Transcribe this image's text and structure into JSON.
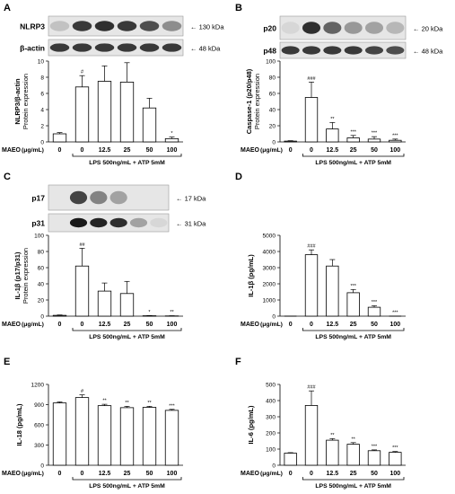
{
  "panels": [
    {
      "letter": "A",
      "blots": [
        {
          "label": "NLRP3",
          "size": "130 kDa",
          "bands": [
            0.15,
            0.8,
            0.85,
            0.8,
            0.7,
            0.4
          ]
        },
        {
          "label": "β-actin",
          "size": "48 kDa",
          "bands": [
            0.8,
            0.8,
            0.8,
            0.8,
            0.8,
            0.8
          ]
        }
      ],
      "chart": {
        "type": "bar",
        "ylabel": [
          "NLRP3/β-actin",
          "Protein expression"
        ],
        "yticks": [
          "0",
          "2",
          "4",
          "6",
          "8",
          "10"
        ],
        "ylim": [
          0,
          10
        ],
        "categories": [
          "0",
          "0",
          "12.5",
          "25",
          "50",
          "100"
        ],
        "values": [
          1.0,
          6.8,
          7.5,
          7.4,
          4.2,
          0.4
        ],
        "errors": [
          0.15,
          1.4,
          1.9,
          2.4,
          1.2,
          0.2
        ],
        "marks": [
          "",
          "#",
          "",
          "",
          "",
          "*"
        ],
        "xaxis_label": "MAEO",
        "xaxis_unit": "(μg/mL)",
        "treatment": "LPS 500ng/mL + ATP 5mM"
      }
    },
    {
      "letter": "B",
      "blots": [
        {
          "label": "p20",
          "size": "20 kDa",
          "bands": [
            0.05,
            0.85,
            0.6,
            0.35,
            0.3,
            0.2
          ]
        },
        {
          "label": "p48",
          "size": "48 kDa",
          "bands": [
            0.8,
            0.8,
            0.8,
            0.8,
            0.75,
            0.7
          ]
        }
      ],
      "chart": {
        "type": "bar",
        "ylabel": [
          "Caspase-1 (p20/p48)",
          "Protein expression"
        ],
        "yticks": [
          "0",
          "20",
          "40",
          "60",
          "80",
          "100"
        ],
        "ylim": [
          0,
          100
        ],
        "categories": [
          "0",
          "0",
          "12.5",
          "25",
          "50",
          "100"
        ],
        "values": [
          1.0,
          55.0,
          16.0,
          5.0,
          3.5,
          2.0
        ],
        "errors": [
          0.5,
          19.0,
          8.0,
          3.0,
          3.0,
          1.5
        ],
        "marks": [
          "",
          "###",
          "**",
          "***",
          "***",
          "***"
        ],
        "xaxis_label": "MAEO",
        "xaxis_unit": "(μg/mL)",
        "treatment": "LPS 500ng/mL + ATP 5mM"
      }
    },
    {
      "letter": "C",
      "blots": [
        {
          "label": "p17",
          "size": "17 kDa",
          "bands": [
            0.0,
            0.75,
            0.45,
            0.3,
            0.0,
            0.0
          ]
        },
        {
          "label": "p31",
          "size": "31 kDa",
          "bands": [
            0.0,
            0.95,
            0.9,
            0.85,
            0.3,
            0.05
          ]
        }
      ],
      "chart": {
        "type": "bar",
        "ylabel": [
          "IL-1β (p17/p31)",
          "Protein expression"
        ],
        "yticks": [
          "0",
          "20",
          "40",
          "60",
          "80",
          "100"
        ],
        "ylim": [
          0,
          100
        ],
        "categories": [
          "0",
          "0",
          "12.5",
          "25",
          "50",
          "100"
        ],
        "values": [
          1.0,
          62.0,
          31.0,
          28.0,
          0.5,
          0.3
        ],
        "errors": [
          0.5,
          22.0,
          10.0,
          15.0,
          0.3,
          0.2
        ],
        "marks": [
          "",
          "##",
          "",
          "",
          "*",
          "**"
        ],
        "xaxis_label": "MAEO",
        "xaxis_unit": "(μg/mL)",
        "treatment": "LPS 500ng/mL + ATP 5mM"
      }
    },
    {
      "letter": "D",
      "blots": [],
      "chart": {
        "type": "bar",
        "ylabel": [
          "IL-1β (pg/mL)"
        ],
        "yticks": [
          "0",
          "1000",
          "2000",
          "3000",
          "4000",
          "5000"
        ],
        "ylim": [
          0,
          5000
        ],
        "categories": [
          "0",
          "0",
          "12.5",
          "25",
          "50",
          "100"
        ],
        "values": [
          0,
          3800,
          3100,
          1450,
          550,
          0
        ],
        "errors": [
          0,
          300,
          400,
          200,
          100,
          0
        ],
        "marks": [
          "",
          "###",
          "",
          "***",
          "***",
          "***"
        ],
        "xaxis_label": "MAEO",
        "xaxis_unit": "(μg/mL)",
        "treatment": "LPS 500ng/mL + ATP 5mM"
      }
    },
    {
      "letter": "E",
      "blots": [],
      "chart": {
        "type": "bar",
        "ylabel": [
          "IL-18 (pg/mL)"
        ],
        "yticks": [
          "0",
          "300",
          "600",
          "900",
          "1200"
        ],
        "ylim": [
          0,
          1200
        ],
        "categories": [
          "0",
          "0",
          "12.5",
          "25",
          "50",
          "100"
        ],
        "values": [
          925,
          1005,
          885,
          855,
          860,
          815
        ],
        "errors": [
          15,
          40,
          20,
          20,
          15,
          15
        ],
        "marks": [
          "",
          "#",
          "**",
          "**",
          "**",
          "***"
        ],
        "xaxis_label": "MAEO",
        "xaxis_unit": "(μg/mL)",
        "treatment": "LPS 500ng/mL + ATP 5mM"
      }
    },
    {
      "letter": "F",
      "blots": [],
      "chart": {
        "type": "bar",
        "ylabel": [
          "IL-6 (pg/mL)"
        ],
        "yticks": [
          "0",
          "100",
          "200",
          "300",
          "400",
          "500"
        ],
        "ylim": [
          0,
          500
        ],
        "categories": [
          "0",
          "0",
          "12.5",
          "25",
          "50",
          "100"
        ],
        "values": [
          75,
          370,
          155,
          130,
          90,
          80
        ],
        "errors": [
          3,
          90,
          10,
          10,
          5,
          5
        ],
        "marks": [
          "",
          "###",
          "**",
          "**",
          "***",
          "***"
        ],
        "xaxis_label": "MAEO",
        "xaxis_unit": "(μg/mL)",
        "treatment": "LPS 500ng/mL + ATP 5mM"
      }
    }
  ],
  "chart_data": [
    {
      "type": "bar",
      "panel": "A",
      "categories": [
        "0",
        "0",
        "12.5",
        "25",
        "50",
        "100"
      ],
      "values": [
        1.0,
        6.8,
        7.5,
        7.4,
        4.2,
        0.4
      ],
      "ylabel": "NLRP3/β-actin Protein expression",
      "ylim": [
        0,
        10
      ]
    },
    {
      "type": "bar",
      "panel": "B",
      "categories": [
        "0",
        "0",
        "12.5",
        "25",
        "50",
        "100"
      ],
      "values": [
        1.0,
        55.0,
        16.0,
        5.0,
        3.5,
        2.0
      ],
      "ylabel": "Caspase-1 (p20/p48) Protein expression",
      "ylim": [
        0,
        100
      ]
    },
    {
      "type": "bar",
      "panel": "C",
      "categories": [
        "0",
        "0",
        "12.5",
        "25",
        "50",
        "100"
      ],
      "values": [
        1.0,
        62.0,
        31.0,
        28.0,
        0.5,
        0.3
      ],
      "ylabel": "IL-1β (p17/p31) Protein expression",
      "ylim": [
        0,
        100
      ]
    },
    {
      "type": "bar",
      "panel": "D",
      "categories": [
        "0",
        "0",
        "12.5",
        "25",
        "50",
        "100"
      ],
      "values": [
        0,
        3800,
        3100,
        1450,
        550,
        0
      ],
      "ylabel": "IL-1β (pg/mL)",
      "ylim": [
        0,
        5000
      ]
    },
    {
      "type": "bar",
      "panel": "E",
      "categories": [
        "0",
        "0",
        "12.5",
        "25",
        "50",
        "100"
      ],
      "values": [
        925,
        1005,
        885,
        855,
        860,
        815
      ],
      "ylabel": "IL-18 (pg/mL)",
      "ylim": [
        0,
        1200
      ]
    },
    {
      "type": "bar",
      "panel": "F",
      "categories": [
        "0",
        "0",
        "12.5",
        "25",
        "50",
        "100"
      ],
      "values": [
        75,
        370,
        155,
        130,
        90,
        80
      ],
      "ylabel": "IL-6 (pg/mL)",
      "ylim": [
        0,
        500
      ]
    }
  ]
}
